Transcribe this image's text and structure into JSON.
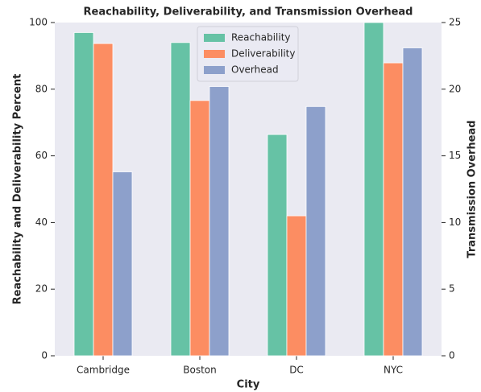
{
  "chart_data": {
    "type": "bar",
    "title": "Reachability, Deliverability, and Transmission Overhead",
    "xlabel": "City",
    "ylabel": "Reachability and Deliverability Percent",
    "y2label": "Transmission Overhead",
    "categories": [
      "Cambridge",
      "Boston",
      "DC",
      "NYC"
    ],
    "series": [
      {
        "name": "Reachability",
        "color": "#66c2a5",
        "values": [
          97,
          94,
          66.4,
          100
        ]
      },
      {
        "name": "Deliverability",
        "color": "#fc8d62",
        "values": [
          93.7,
          76.6,
          42,
          87.9
        ]
      },
      {
        "name": "Overhead",
        "color": "#8da0cb",
        "values": [
          13.8,
          20.2,
          18.7,
          23.1
        ],
        "axis": "y2"
      }
    ],
    "ylim": [
      0,
      100
    ],
    "yticks": [
      0,
      20,
      40,
      60,
      80,
      100
    ],
    "y2lim": [
      0,
      25
    ],
    "y2ticks": [
      0,
      5,
      10,
      15,
      20,
      25
    ],
    "grid": false,
    "legend": "upper center"
  }
}
